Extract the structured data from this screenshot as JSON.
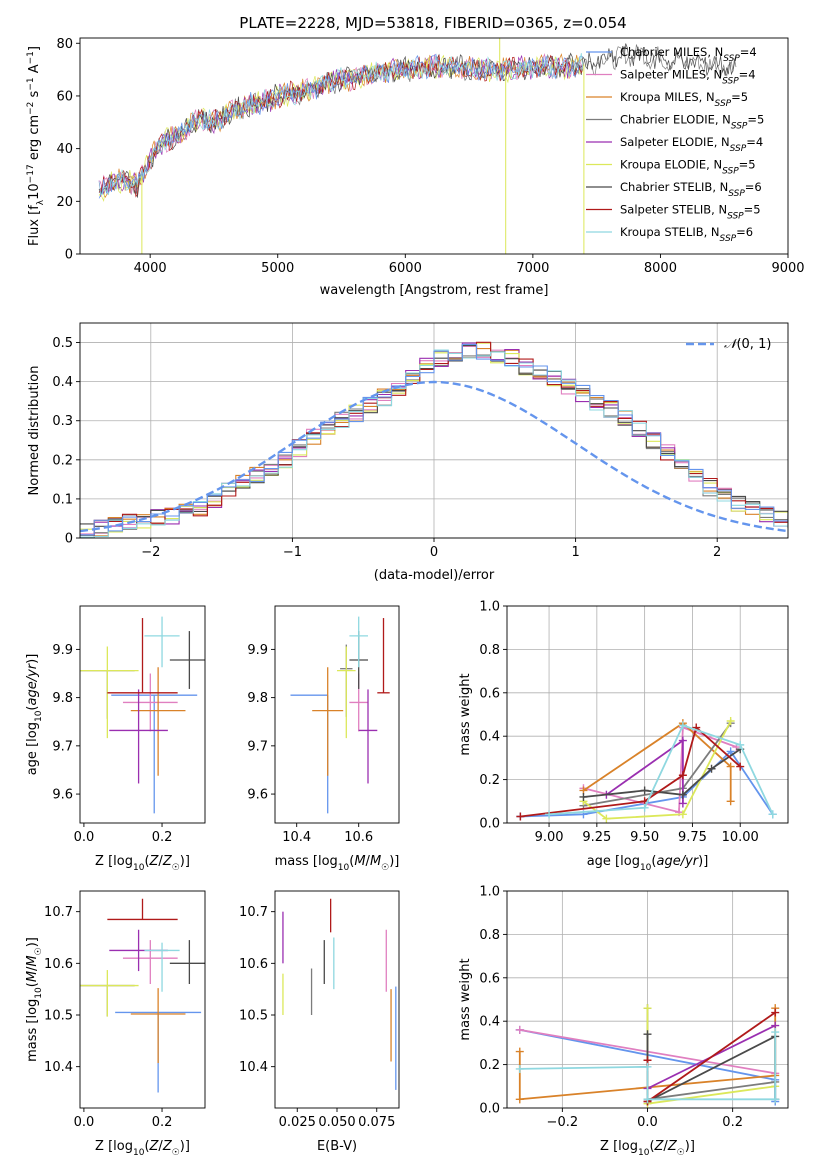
{
  "figure": {
    "title": "PLATE=2228, MJD=53818, FIBERID=0365, z=0.054"
  },
  "colors": [
    "#6495ed",
    "#e07fc0",
    "#d98229",
    "#7c7c7c",
    "#9a2fb0",
    "#dce85a",
    "#4a4a4a",
    "#b01a1a",
    "#8fd8e0"
  ],
  "chart_data": [
    {
      "id": "spectrum",
      "type": "line",
      "title": "PLATE=2228, MJD=53818, FIBERID=0365, z=0.054",
      "xlabel": "wavelength [Angstrom, rest frame]",
      "ylabel": "Flux [f_λ10^-17 erg cm^-2 s^-1 A^-1]",
      "xlim": [
        3450,
        9000
      ],
      "ylim": [
        0,
        82
      ],
      "xticks": [
        4000,
        5000,
        6000,
        7000,
        8000,
        9000
      ],
      "yticks": [
        0,
        20,
        40,
        60,
        80
      ],
      "legend_position": "right",
      "legend": [
        "Chabrier MILES, N_SSP=4",
        "Salpeter MILES, N_SSP=4",
        "Kroupa MILES, N_SSP=5",
        "Chabrier ELODIE, N_SSP=5",
        "Salpeter ELODIE, N_SSP=4",
        "Kroupa ELODIE, N_SSP=5",
        "Chabrier STELIB, N_SSP=6",
        "Salpeter STELIB, N_SSP=5",
        "Kroupa STELIB, N_SSP=6"
      ],
      "legend_color_index": [
        0,
        1,
        2,
        3,
        4,
        5,
        6,
        7,
        8
      ],
      "continuum": {
        "x": [
          3600,
          3700,
          3800,
          3900,
          4000,
          4100,
          4200,
          4300,
          4400,
          4500,
          4600,
          4700,
          4800,
          4900,
          5000,
          5100,
          5200,
          5300,
          5400,
          5500,
          5600,
          5800,
          6000,
          6200,
          6400,
          6600,
          6800,
          7000,
          7200,
          7400,
          7600,
          7800,
          8000,
          8200,
          8400,
          8600
        ],
        "y": [
          24,
          27,
          28,
          26,
          36,
          43,
          45,
          48,
          52,
          50,
          53,
          55,
          57,
          58,
          60,
          61,
          62,
          63,
          65,
          66,
          67,
          69,
          70,
          71,
          71,
          70,
          70,
          71,
          71,
          72,
          74,
          76,
          74,
          73,
          72,
          71
        ]
      },
      "spikes": [
        {
          "x": 3935,
          "y": 0
        },
        {
          "x": 6787,
          "y": 0
        },
        {
          "x": 7400,
          "y": 0
        },
        {
          "x": 6740,
          "y": 82
        }
      ]
    },
    {
      "id": "residual_histogram",
      "type": "line",
      "xlabel": "(data-model)/error",
      "ylabel": "Normed distribution",
      "xlim": [
        -2.5,
        2.5
      ],
      "ylim": [
        0,
        0.55
      ],
      "xticks": [
        -2,
        -1,
        0,
        1,
        2
      ],
      "yticks": [
        0,
        0.1,
        0.2,
        0.3,
        0.4,
        0.5
      ],
      "grid": true,
      "legend_position": "top-right",
      "legend": [
        "N(0,1)"
      ],
      "bin_width": 0.1,
      "bin_start": -2.5,
      "base_values": [
        0.018,
        0.025,
        0.032,
        0.04,
        0.046,
        0.05,
        0.056,
        0.066,
        0.078,
        0.095,
        0.12,
        0.14,
        0.16,
        0.18,
        0.2,
        0.23,
        0.26,
        0.28,
        0.3,
        0.32,
        0.34,
        0.36,
        0.38,
        0.41,
        0.44,
        0.46,
        0.47,
        0.48,
        0.48,
        0.47,
        0.46,
        0.44,
        0.42,
        0.41,
        0.39,
        0.37,
        0.35,
        0.33,
        0.31,
        0.28,
        0.25,
        0.22,
        0.19,
        0.16,
        0.13,
        0.11,
        0.09,
        0.072,
        0.06,
        0.05,
        0.045
      ]
    },
    {
      "id": "age_vs_Z",
      "type": "scatter",
      "xlabel": "Z [log10(Z/Z☉)]",
      "ylabel": "age [log10(age/yr)]",
      "xlim": [
        -0.01,
        0.31
      ],
      "ylim": [
        9.54,
        9.99
      ],
      "xticks": [
        0.0,
        0.2
      ],
      "xticklabels": [
        "0.0",
        "0.2"
      ],
      "yticks": [
        9.6,
        9.7,
        9.8,
        9.9
      ],
      "yticklabels": [
        "9.6",
        "9.7",
        "9.8",
        "9.9"
      ],
      "points": [
        {
          "x": 0.18,
          "y": 9.805,
          "xerr": 0.11,
          "yerr": [
            0.245,
            0.0
          ],
          "c": 0
        },
        {
          "x": 0.17,
          "y": 9.79,
          "xerr": 0.07,
          "yerr": [
            0.06,
            0.06
          ],
          "c": 1
        },
        {
          "x": 0.19,
          "y": 9.773,
          "xerr": 0.07,
          "yerr": [
            0.135,
            0.09
          ],
          "c": 2
        },
        {
          "x": 0.06,
          "y": 9.856,
          "xerr": 0.07,
          "yerr": [
            0.1,
            0.0
          ],
          "c": 3
        },
        {
          "x": 0.14,
          "y": 9.732,
          "xerr": 0.075,
          "yerr": [
            0.11,
            0.085
          ],
          "c": 4
        },
        {
          "x": 0.06,
          "y": 9.856,
          "xerr": 0.08,
          "yerr": [
            0.14,
            0.05
          ],
          "c": 5
        },
        {
          "x": 0.27,
          "y": 9.878,
          "xerr": 0.05,
          "yerr": [
            0.06,
            0.06
          ],
          "c": 6
        },
        {
          "x": 0.15,
          "y": 9.81,
          "xerr": 0.09,
          "yerr": [
            0.0,
            0.155
          ],
          "c": 7
        },
        {
          "x": 0.2,
          "y": 9.928,
          "xerr": 0.045,
          "yerr": [
            0.065,
            0.04
          ],
          "c": 8
        }
      ]
    },
    {
      "id": "age_vs_mass",
      "type": "scatter",
      "xlabel": "mass [log10(M/M☉)]",
      "ylabel": "",
      "xlim": [
        10.33,
        10.73
      ],
      "ylim": [
        9.54,
        9.99
      ],
      "xticks": [
        10.4,
        10.6
      ],
      "xticklabels": [
        "10.4",
        "10.6"
      ],
      "yticks": [
        9.6,
        9.7,
        9.8,
        9.9
      ],
      "yticklabels": [
        "9.6",
        "9.7",
        "9.8",
        "9.9"
      ],
      "points": [
        {
          "x": 10.5,
          "y": 9.805,
          "xerr": [
            0.12,
            0.0
          ],
          "yerr": [
            0.245,
            0.0
          ],
          "c": 0
        },
        {
          "x": 10.6,
          "y": 9.79,
          "xerr": 0.03,
          "yerr": [
            0.06,
            0.06
          ],
          "c": 1
        },
        {
          "x": 10.5,
          "y": 9.773,
          "xerr": 0.05,
          "yerr": [
            0.135,
            0.09
          ],
          "c": 2
        },
        {
          "x": 10.56,
          "y": 9.86,
          "xerr": 0.02,
          "yerr": [
            0.1,
            0.05
          ],
          "c": 3
        },
        {
          "x": 10.63,
          "y": 9.732,
          "xerr": 0.03,
          "yerr": [
            0.11,
            0.085
          ],
          "c": 4
        },
        {
          "x": 10.56,
          "y": 9.856,
          "xerr": 0.03,
          "yerr": [
            0.14,
            0.05
          ],
          "c": 5
        },
        {
          "x": 10.6,
          "y": 9.878,
          "xerr": 0.03,
          "yerr": [
            0.06,
            0.06
          ],
          "c": 6
        },
        {
          "x": 10.68,
          "y": 9.81,
          "xerr": 0.02,
          "yerr": [
            0.0,
            0.155
          ],
          "c": 7
        },
        {
          "x": 10.6,
          "y": 9.928,
          "xerr": 0.03,
          "yerr": [
            0.065,
            0.04
          ],
          "c": 8
        }
      ]
    },
    {
      "id": "weight_vs_age",
      "type": "line",
      "xlabel": "age [log10(age/yr)]",
      "ylabel": "mass weight",
      "xlim": [
        8.78,
        10.25
      ],
      "ylim": [
        0,
        1
      ],
      "xticks": [
        9.0,
        9.25,
        9.5,
        9.75,
        10.0
      ],
      "xticklabels": [
        "9.00",
        "9.25",
        "9.50",
        "9.75",
        "10.00"
      ],
      "yticks": [
        0,
        0.2,
        0.4,
        0.6,
        0.8,
        1.0
      ],
      "yticklabels": [
        "0.0",
        "0.2",
        "0.4",
        "0.6",
        "0.8",
        "1.0"
      ],
      "grid": true,
      "series": [
        {
          "c": 0,
          "points": [
            [
              8.85,
              0.03
            ],
            [
              9.18,
              0.04
            ],
            [
              9.7,
              0.12
            ],
            [
              9.95,
              0.33
            ],
            [
              10.17,
              0.04
            ]
          ]
        },
        {
          "c": 1,
          "points": [
            [
              9.18,
              0.16
            ],
            [
              9.68,
              0.05
            ],
            [
              9.7,
              0.44
            ],
            [
              9.98,
              0.35
            ]
          ]
        },
        {
          "c": 2,
          "points": [
            [
              9.18,
              0.15
            ],
            [
              9.7,
              0.46
            ],
            [
              9.95,
              0.26
            ],
            [
              9.95,
              0.1
            ]
          ]
        },
        {
          "c": 3,
          "points": [
            [
              9.18,
              0.08
            ],
            [
              9.7,
              0.16
            ],
            [
              9.95,
              0.46
            ]
          ]
        },
        {
          "c": 4,
          "points": [
            [
              9.3,
              0.13
            ],
            [
              9.7,
              0.38
            ],
            [
              9.7,
              0.09
            ]
          ]
        },
        {
          "c": 5,
          "points": [
            [
              9.18,
              0.1
            ],
            [
              9.3,
              0.02
            ],
            [
              9.7,
              0.04
            ],
            [
              9.95,
              0.47
            ]
          ]
        },
        {
          "c": 6,
          "points": [
            [
              9.18,
              0.12
            ],
            [
              9.5,
              0.15
            ],
            [
              9.7,
              0.13
            ],
            [
              9.85,
              0.25
            ],
            [
              10.0,
              0.34
            ]
          ]
        },
        {
          "c": 7,
          "points": [
            [
              8.85,
              0.03
            ],
            [
              9.5,
              0.1
            ],
            [
              9.7,
              0.22
            ],
            [
              9.77,
              0.44
            ],
            [
              10.0,
              0.26
            ]
          ]
        },
        {
          "c": 8,
          "points": [
            [
              9.0,
              0.04
            ],
            [
              9.5,
              0.07
            ],
            [
              9.7,
              0.45
            ],
            [
              10.0,
              0.36
            ],
            [
              10.17,
              0.04
            ]
          ]
        }
      ]
    },
    {
      "id": "mass_vs_Z",
      "type": "scatter",
      "xlabel": "Z [log10(Z/Z☉)]",
      "ylabel": "mass [log10(M/M☉)]",
      "xlim": [
        -0.01,
        0.31
      ],
      "ylim": [
        10.32,
        10.74
      ],
      "xticks": [
        0.0,
        0.2
      ],
      "xticklabels": [
        "0.0",
        "0.2"
      ],
      "yticks": [
        10.4,
        10.5,
        10.6,
        10.7
      ],
      "yticklabels": [
        "10.4",
        "10.5",
        "10.6",
        "10.7"
      ],
      "points": [
        {
          "x": 0.19,
          "y": 10.505,
          "xerr": 0.11,
          "yerr": [
            0.155,
            0.0
          ],
          "c": 0
        },
        {
          "x": 0.17,
          "y": 10.61,
          "xerr": 0.07,
          "yerr": [
            0.05,
            0.035
          ],
          "c": 1
        },
        {
          "x": 0.19,
          "y": 10.502,
          "xerr": 0.07,
          "yerr": [
            0.095,
            0.05
          ],
          "c": 2
        },
        {
          "x": 0.06,
          "y": 10.557,
          "xerr": 0.07,
          "yerr": [
            0.06,
            0.0
          ],
          "c": 3
        },
        {
          "x": 0.14,
          "y": 10.625,
          "xerr": 0.075,
          "yerr": [
            0.04,
            0.04
          ],
          "c": 4
        },
        {
          "x": 0.06,
          "y": 10.557,
          "xerr": 0.08,
          "yerr": [
            0.06,
            0.03
          ],
          "c": 5
        },
        {
          "x": 0.27,
          "y": 10.6,
          "xerr": 0.05,
          "yerr": [
            0.04,
            0.045
          ],
          "c": 6
        },
        {
          "x": 0.15,
          "y": 10.685,
          "xerr": 0.09,
          "yerr": [
            0.0,
            0.04
          ],
          "c": 7
        },
        {
          "x": 0.2,
          "y": 10.625,
          "xerr": 0.045,
          "yerr": [
            0.08,
            0.015
          ],
          "c": 8
        }
      ]
    },
    {
      "id": "mass_vs_ebv",
      "type": "scatter",
      "xlabel": "E(B-V)",
      "ylabel": "",
      "xlim": [
        0.011,
        0.089
      ],
      "ylim": [
        10.32,
        10.74
      ],
      "xticks": [
        0.025,
        0.05,
        0.075
      ],
      "xticklabels": [
        "0.025",
        "0.050",
        "0.075"
      ],
      "yticks": [
        10.4,
        10.5,
        10.6,
        10.7
      ],
      "yticklabels": [
        "10.4",
        "10.5",
        "10.6",
        "10.7"
      ],
      "points": [
        {
          "x": 0.087,
          "y": 10.555,
          "xerr": 0,
          "yerr": [
            0.2,
            0.0
          ],
          "c": 0
        },
        {
          "x": 0.081,
          "y": 10.615,
          "xerr": 0,
          "yerr": [
            0.07,
            0.05
          ],
          "c": 1
        },
        {
          "x": 0.084,
          "y": 10.47,
          "xerr": 0,
          "yerr": [
            0.06,
            0.08
          ],
          "c": 2
        },
        {
          "x": 0.034,
          "y": 10.55,
          "xerr": 0,
          "yerr": [
            0.05,
            0.04
          ],
          "c": 3
        },
        {
          "x": 0.016,
          "y": 10.66,
          "xerr": 0,
          "yerr": [
            0.06,
            0.04
          ],
          "c": 4
        },
        {
          "x": 0.016,
          "y": 10.54,
          "xerr": 0,
          "yerr": [
            0.04,
            0.04
          ],
          "c": 5
        },
        {
          "x": 0.042,
          "y": 10.6,
          "xerr": 0,
          "yerr": [
            0.04,
            0.045
          ],
          "c": 6
        },
        {
          "x": 0.046,
          "y": 10.69,
          "xerr": 0,
          "yerr": [
            0.03,
            0.035
          ],
          "c": 7
        },
        {
          "x": 0.048,
          "y": 10.6,
          "xerr": 0,
          "yerr": [
            0.05,
            0.05
          ],
          "c": 8
        }
      ]
    },
    {
      "id": "weight_vs_Z",
      "type": "line",
      "xlabel": "Z [log10(Z/Z☉)]",
      "ylabel": "mass weight",
      "xlim": [
        -0.33,
        0.33
      ],
      "ylim": [
        0,
        1
      ],
      "xticks": [
        -0.2,
        0.0,
        0.2
      ],
      "xticklabels": [
        "−0.2",
        "0.0",
        "0.2"
      ],
      "yticks": [
        0,
        0.2,
        0.4,
        0.6,
        0.8,
        1.0
      ],
      "yticklabels": [
        "0.0",
        "0.2",
        "0.4",
        "0.6",
        "0.8",
        "1.0"
      ],
      "grid": true,
      "series": [
        {
          "c": 0,
          "points": [
            [
              -0.3,
              0.36
            ],
            [
              0.3,
              0.13
            ],
            [
              0.3,
              0.03
            ]
          ]
        },
        {
          "c": 1,
          "points": [
            [
              -0.3,
              0.36
            ],
            [
              0.3,
              0.16
            ]
          ]
        },
        {
          "c": 2,
          "points": [
            [
              -0.3,
              0.26
            ],
            [
              -0.3,
              0.04
            ],
            [
              0.3,
              0.15
            ],
            [
              0.3,
              0.46
            ]
          ]
        },
        {
          "c": 3,
          "points": [
            [
              0.0,
              0.46
            ],
            [
              0.0,
              0.04
            ],
            [
              0.3,
              0.12
            ]
          ]
        },
        {
          "c": 4,
          "points": [
            [
              0.0,
              0.09
            ],
            [
              0.3,
              0.38
            ]
          ]
        },
        {
          "c": 5,
          "points": [
            [
              0.0,
              0.46
            ],
            [
              0.0,
              0.02
            ],
            [
              0.3,
              0.1
            ]
          ]
        },
        {
          "c": 6,
          "points": [
            [
              0.0,
              0.34
            ],
            [
              0.0,
              0.03
            ],
            [
              0.3,
              0.33
            ],
            [
              0.3,
              0.04
            ]
          ]
        },
        {
          "c": 7,
          "points": [
            [
              0.0,
              0.22
            ],
            [
              0.0,
              0.03
            ],
            [
              0.3,
              0.44
            ]
          ]
        },
        {
          "c": 8,
          "points": [
            [
              -0.3,
              0.18
            ],
            [
              0.0,
              0.19
            ],
            [
              0.0,
              0.04
            ],
            [
              0.3,
              0.04
            ],
            [
              0.3,
              0.35
            ]
          ]
        }
      ]
    }
  ]
}
